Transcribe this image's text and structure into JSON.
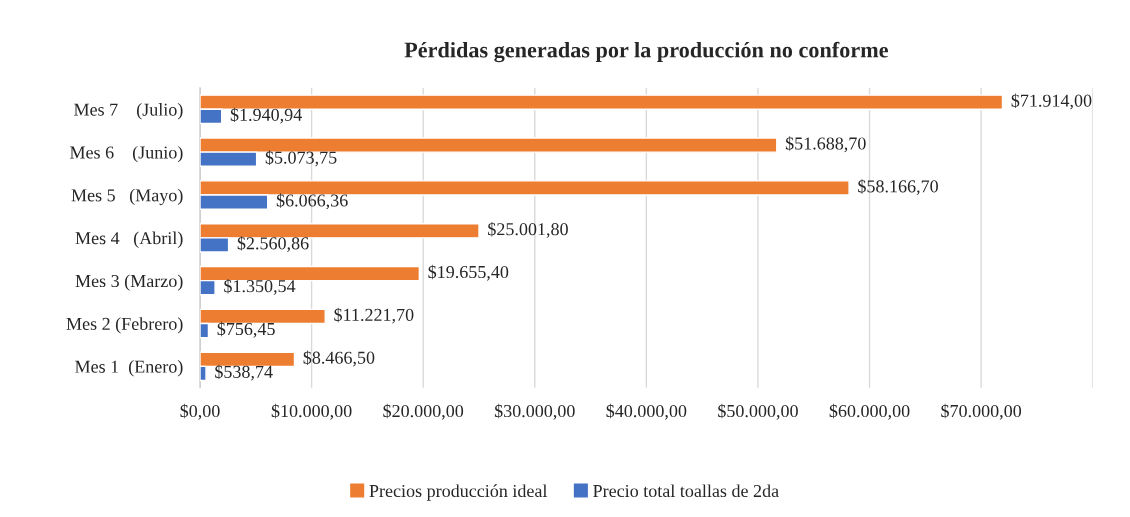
{
  "chart_data": {
    "type": "bar",
    "orientation": "horizontal",
    "title": "Pérdidas generadas por la producción no conforme",
    "categories": [
      "Mes 7    (Julio)",
      "Mes 6    (Junio)",
      "Mes 5   (Mayo)",
      "Mes 4   (Abril)",
      "Mes 3 (Marzo)",
      "Mes 2 (Febrero)",
      "Mes 1  (Enero)"
    ],
    "series": [
      {
        "name": "Precios producción ideal",
        "color": "#ed7d31",
        "values": [
          71914.0,
          51688.7,
          58166.7,
          25001.8,
          19655.4,
          11221.7,
          8466.5
        ],
        "value_labels": [
          "$71.914,00",
          "$51.688,70",
          "$58.166,70",
          "$25.001,80",
          "$19.655,40",
          "$11.221,70",
          "$8.466,50"
        ]
      },
      {
        "name": "Precio total toallas de 2da",
        "color": "#4472c4",
        "values": [
          1940.94,
          5073.75,
          6066.36,
          2560.86,
          1350.54,
          756.45,
          538.74
        ],
        "value_labels": [
          "$1.940,94",
          "$5.073,75",
          "$6.066,36",
          "$2.560,86",
          "$1.350,54",
          "$756,45",
          "$538,74"
        ]
      }
    ],
    "xlim": [
      0,
      80000
    ],
    "xticks": [
      {
        "value": 0,
        "label": "$0,00"
      },
      {
        "value": 10000,
        "label": "$10.000,00"
      },
      {
        "value": 20000,
        "label": "$20.000,00"
      },
      {
        "value": 30000,
        "label": "$30.000,00"
      },
      {
        "value": 40000,
        "label": "$40.000,00"
      },
      {
        "value": 50000,
        "label": "$50.000,00"
      },
      {
        "value": 60000,
        "label": "$60.000,00"
      },
      {
        "value": 70000,
        "label": "$70.000,00"
      },
      {
        "value": 80000,
        "label": null
      }
    ],
    "grid": "x",
    "legend": "bottom"
  }
}
